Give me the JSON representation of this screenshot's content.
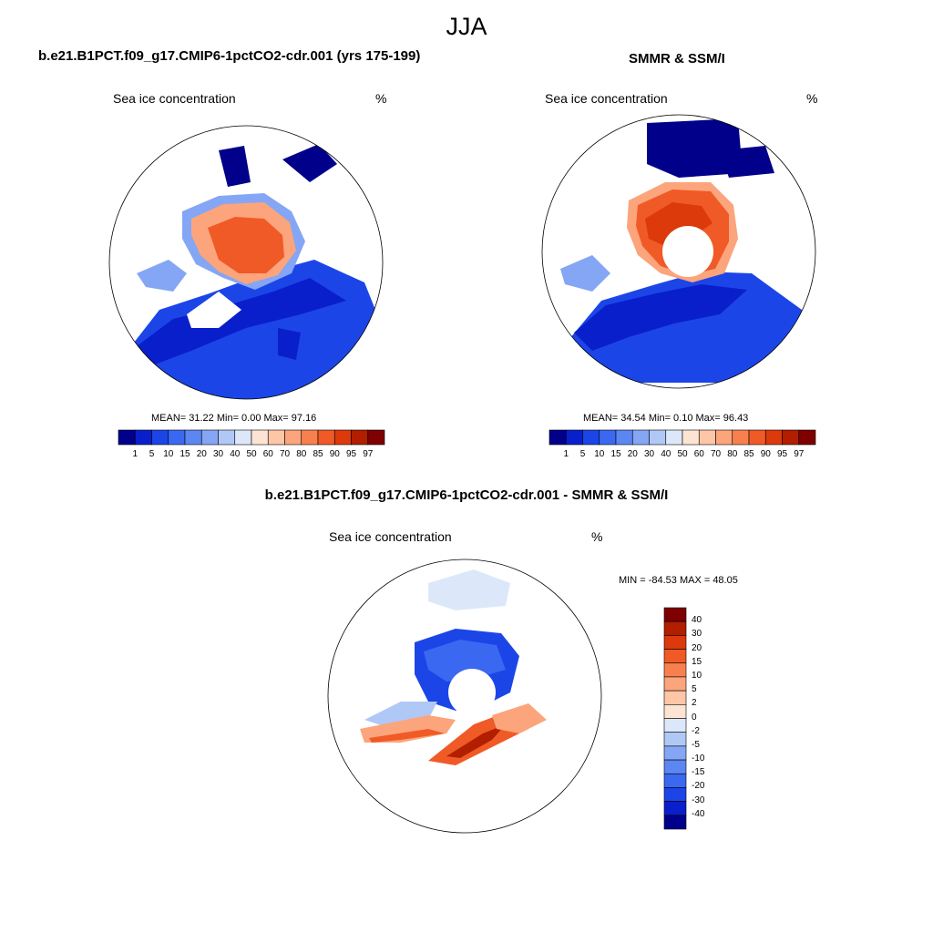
{
  "figure": {
    "title": "JJA"
  },
  "panels": [
    {
      "title": "b.e21.B1PCT.f09_g17.CMIP6-1pctCO2-cdr.001 (yrs 175-199)",
      "left_label": "Sea ice concentration",
      "right_label": "%",
      "stats": "MEAN=  31.22  Min=   0.00  Max=  97.16"
    },
    {
      "title": "SMMR & SSM/I",
      "left_label": "Sea ice concentration",
      "right_label": "%",
      "stats": "MEAN=  34.54  Min=   0.10  Max=  96.43"
    },
    {
      "title": "b.e21.B1PCT.f09_g17.CMIP6-1pctCO2-cdr.001 - SMMR & SSM/I",
      "left_label": "Sea ice concentration",
      "right_label": "%",
      "stats": "MIN = -84.53 MAX =  48.05"
    }
  ],
  "colorbar_conc": {
    "labels": [
      "1",
      "5",
      "10",
      "15",
      "20",
      "30",
      "40",
      "50",
      "60",
      "70",
      "80",
      "85",
      "90",
      "95",
      "97"
    ],
    "colors": [
      "#00008b",
      "#0a1fcc",
      "#1c45e8",
      "#3a68f0",
      "#5c86f2",
      "#84a6f4",
      "#b0c8f6",
      "#dce8fa",
      "#fde4d2",
      "#fdc6a6",
      "#fca47c",
      "#f8804f",
      "#f05a26",
      "#dc3a0a",
      "#b21e00",
      "#7e0000"
    ]
  },
  "colorbar_diff": {
    "labels": [
      "40",
      "30",
      "20",
      "15",
      "10",
      "5",
      "2",
      "0",
      "-2",
      "-5",
      "-10",
      "-15",
      "-20",
      "-30",
      "-40"
    ],
    "colors": [
      "#7e0000",
      "#b21e00",
      "#dc3a0a",
      "#f05a26",
      "#f8804f",
      "#fca47c",
      "#fdc6a6",
      "#fde4d2",
      "#dce8fa",
      "#b0c8f6",
      "#84a6f4",
      "#5c86f2",
      "#3a68f0",
      "#1c45e8",
      "#0a1fcc",
      "#00008b"
    ]
  }
}
